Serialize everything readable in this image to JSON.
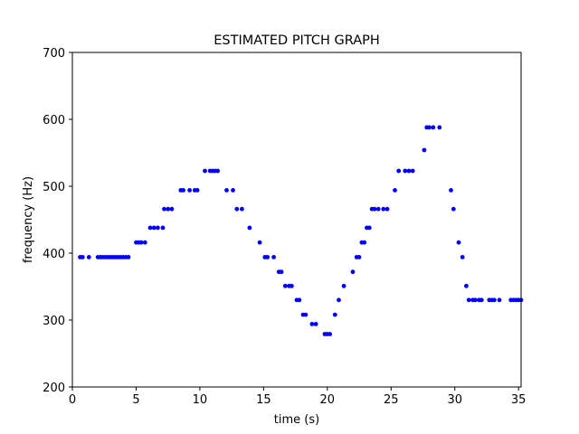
{
  "chart_data": {
    "type": "scatter",
    "title": "ESTIMATED PITCH GRAPH",
    "xlabel": "time (s)",
    "ylabel": "frequency (Hz)",
    "xlim": [
      0,
      35.2
    ],
    "ylim": [
      200,
      700
    ],
    "xticks": [
      0,
      5,
      10,
      15,
      20,
      25,
      30,
      35
    ],
    "yticks": [
      200,
      300,
      400,
      500,
      600,
      700
    ],
    "grid": false,
    "marker_color": "#0000ff",
    "series": [
      {
        "points": [
          [
            0.6,
            394
          ],
          [
            0.8,
            394
          ],
          [
            1.3,
            394
          ],
          [
            2.0,
            394
          ],
          [
            2.2,
            394
          ],
          [
            2.4,
            394
          ],
          [
            2.6,
            394
          ],
          [
            2.8,
            394
          ],
          [
            3.0,
            394
          ],
          [
            3.2,
            394
          ],
          [
            3.4,
            394
          ],
          [
            3.6,
            394
          ],
          [
            3.8,
            394
          ],
          [
            4.0,
            394
          ],
          [
            4.2,
            394
          ],
          [
            4.4,
            394
          ],
          [
            5.0,
            416
          ],
          [
            5.2,
            416
          ],
          [
            5.4,
            416
          ],
          [
            5.7,
            416
          ],
          [
            6.1,
            438
          ],
          [
            6.4,
            438
          ],
          [
            6.7,
            438
          ],
          [
            7.1,
            438
          ],
          [
            7.2,
            466
          ],
          [
            7.5,
            466
          ],
          [
            7.8,
            466
          ],
          [
            8.5,
            494
          ],
          [
            8.7,
            494
          ],
          [
            9.2,
            494
          ],
          [
            9.6,
            494
          ],
          [
            9.8,
            494
          ],
          [
            10.4,
            523
          ],
          [
            10.8,
            523
          ],
          [
            11.0,
            523
          ],
          [
            11.2,
            523
          ],
          [
            11.4,
            523
          ],
          [
            12.1,
            494
          ],
          [
            12.6,
            494
          ],
          [
            12.9,
            466
          ],
          [
            13.3,
            466
          ],
          [
            13.9,
            438
          ],
          [
            14.7,
            416
          ],
          [
            15.1,
            394
          ],
          [
            15.3,
            394
          ],
          [
            15.8,
            394
          ],
          [
            16.2,
            372
          ],
          [
            16.4,
            372
          ],
          [
            16.7,
            351
          ],
          [
            17.0,
            351
          ],
          [
            17.2,
            351
          ],
          [
            17.6,
            330
          ],
          [
            17.8,
            330
          ],
          [
            18.1,
            308
          ],
          [
            18.3,
            308
          ],
          [
            18.8,
            294
          ],
          [
            19.1,
            294
          ],
          [
            19.8,
            279
          ],
          [
            20.0,
            279
          ],
          [
            20.2,
            279
          ],
          [
            20.6,
            308
          ],
          [
            20.9,
            330
          ],
          [
            21.3,
            351
          ],
          [
            22.0,
            372
          ],
          [
            22.3,
            394
          ],
          [
            22.5,
            394
          ],
          [
            22.7,
            416
          ],
          [
            22.9,
            416
          ],
          [
            23.1,
            438
          ],
          [
            23.3,
            438
          ],
          [
            23.5,
            466
          ],
          [
            23.7,
            466
          ],
          [
            24.0,
            466
          ],
          [
            24.4,
            466
          ],
          [
            24.7,
            466
          ],
          [
            25.3,
            494
          ],
          [
            25.6,
            523
          ],
          [
            26.1,
            523
          ],
          [
            26.4,
            523
          ],
          [
            26.7,
            523
          ],
          [
            27.6,
            554
          ],
          [
            27.8,
            588
          ],
          [
            28.0,
            588
          ],
          [
            28.3,
            588
          ],
          [
            28.8,
            588
          ],
          [
            29.7,
            494
          ],
          [
            29.9,
            466
          ],
          [
            30.3,
            416
          ],
          [
            30.6,
            394
          ],
          [
            30.9,
            351
          ],
          [
            31.1,
            330
          ],
          [
            31.4,
            330
          ],
          [
            31.6,
            330
          ],
          [
            31.9,
            330
          ],
          [
            32.1,
            330
          ],
          [
            32.7,
            330
          ],
          [
            32.9,
            330
          ],
          [
            33.1,
            330
          ],
          [
            33.5,
            330
          ],
          [
            34.4,
            330
          ],
          [
            34.6,
            330
          ],
          [
            34.8,
            330
          ],
          [
            35.0,
            330
          ],
          [
            35.2,
            330
          ]
        ]
      }
    ]
  }
}
